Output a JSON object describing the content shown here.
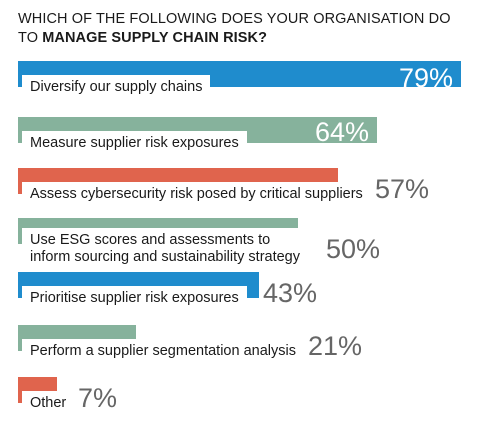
{
  "header": {
    "title_part1": "WHICH OF THE FOLLOWING DOES YOUR ORGANISATION DO TO ",
    "title_part2": "MANAGE SUPPLY CHAIN RISK?"
  },
  "chart_data": {
    "type": "bar",
    "orientation": "horizontal",
    "xlim": [
      0,
      79
    ],
    "categories": [
      "Diversify our supply chains",
      "Measure supplier risk exposures",
      "Assess cybersecurity risk posed by critical suppliers",
      "Use ESG scores and assessments to inform sourcing and sustainability strategy",
      "Prioritise supplier risk exposures",
      "Perform a supplier segmentation analysis",
      "Other"
    ],
    "values": [
      79,
      64,
      57,
      50,
      43,
      21,
      7
    ],
    "value_labels": [
      "79%",
      "64%",
      "57%",
      "50%",
      "43%",
      "21%",
      "7%"
    ],
    "colors": [
      "#1f8ccd",
      "#86b29c",
      "#e0644d",
      "#86b29c",
      "#1f8ccd",
      "#86b29c",
      "#e0644d"
    ],
    "value_label_inside": [
      true,
      true,
      false,
      false,
      false,
      false,
      false
    ]
  }
}
